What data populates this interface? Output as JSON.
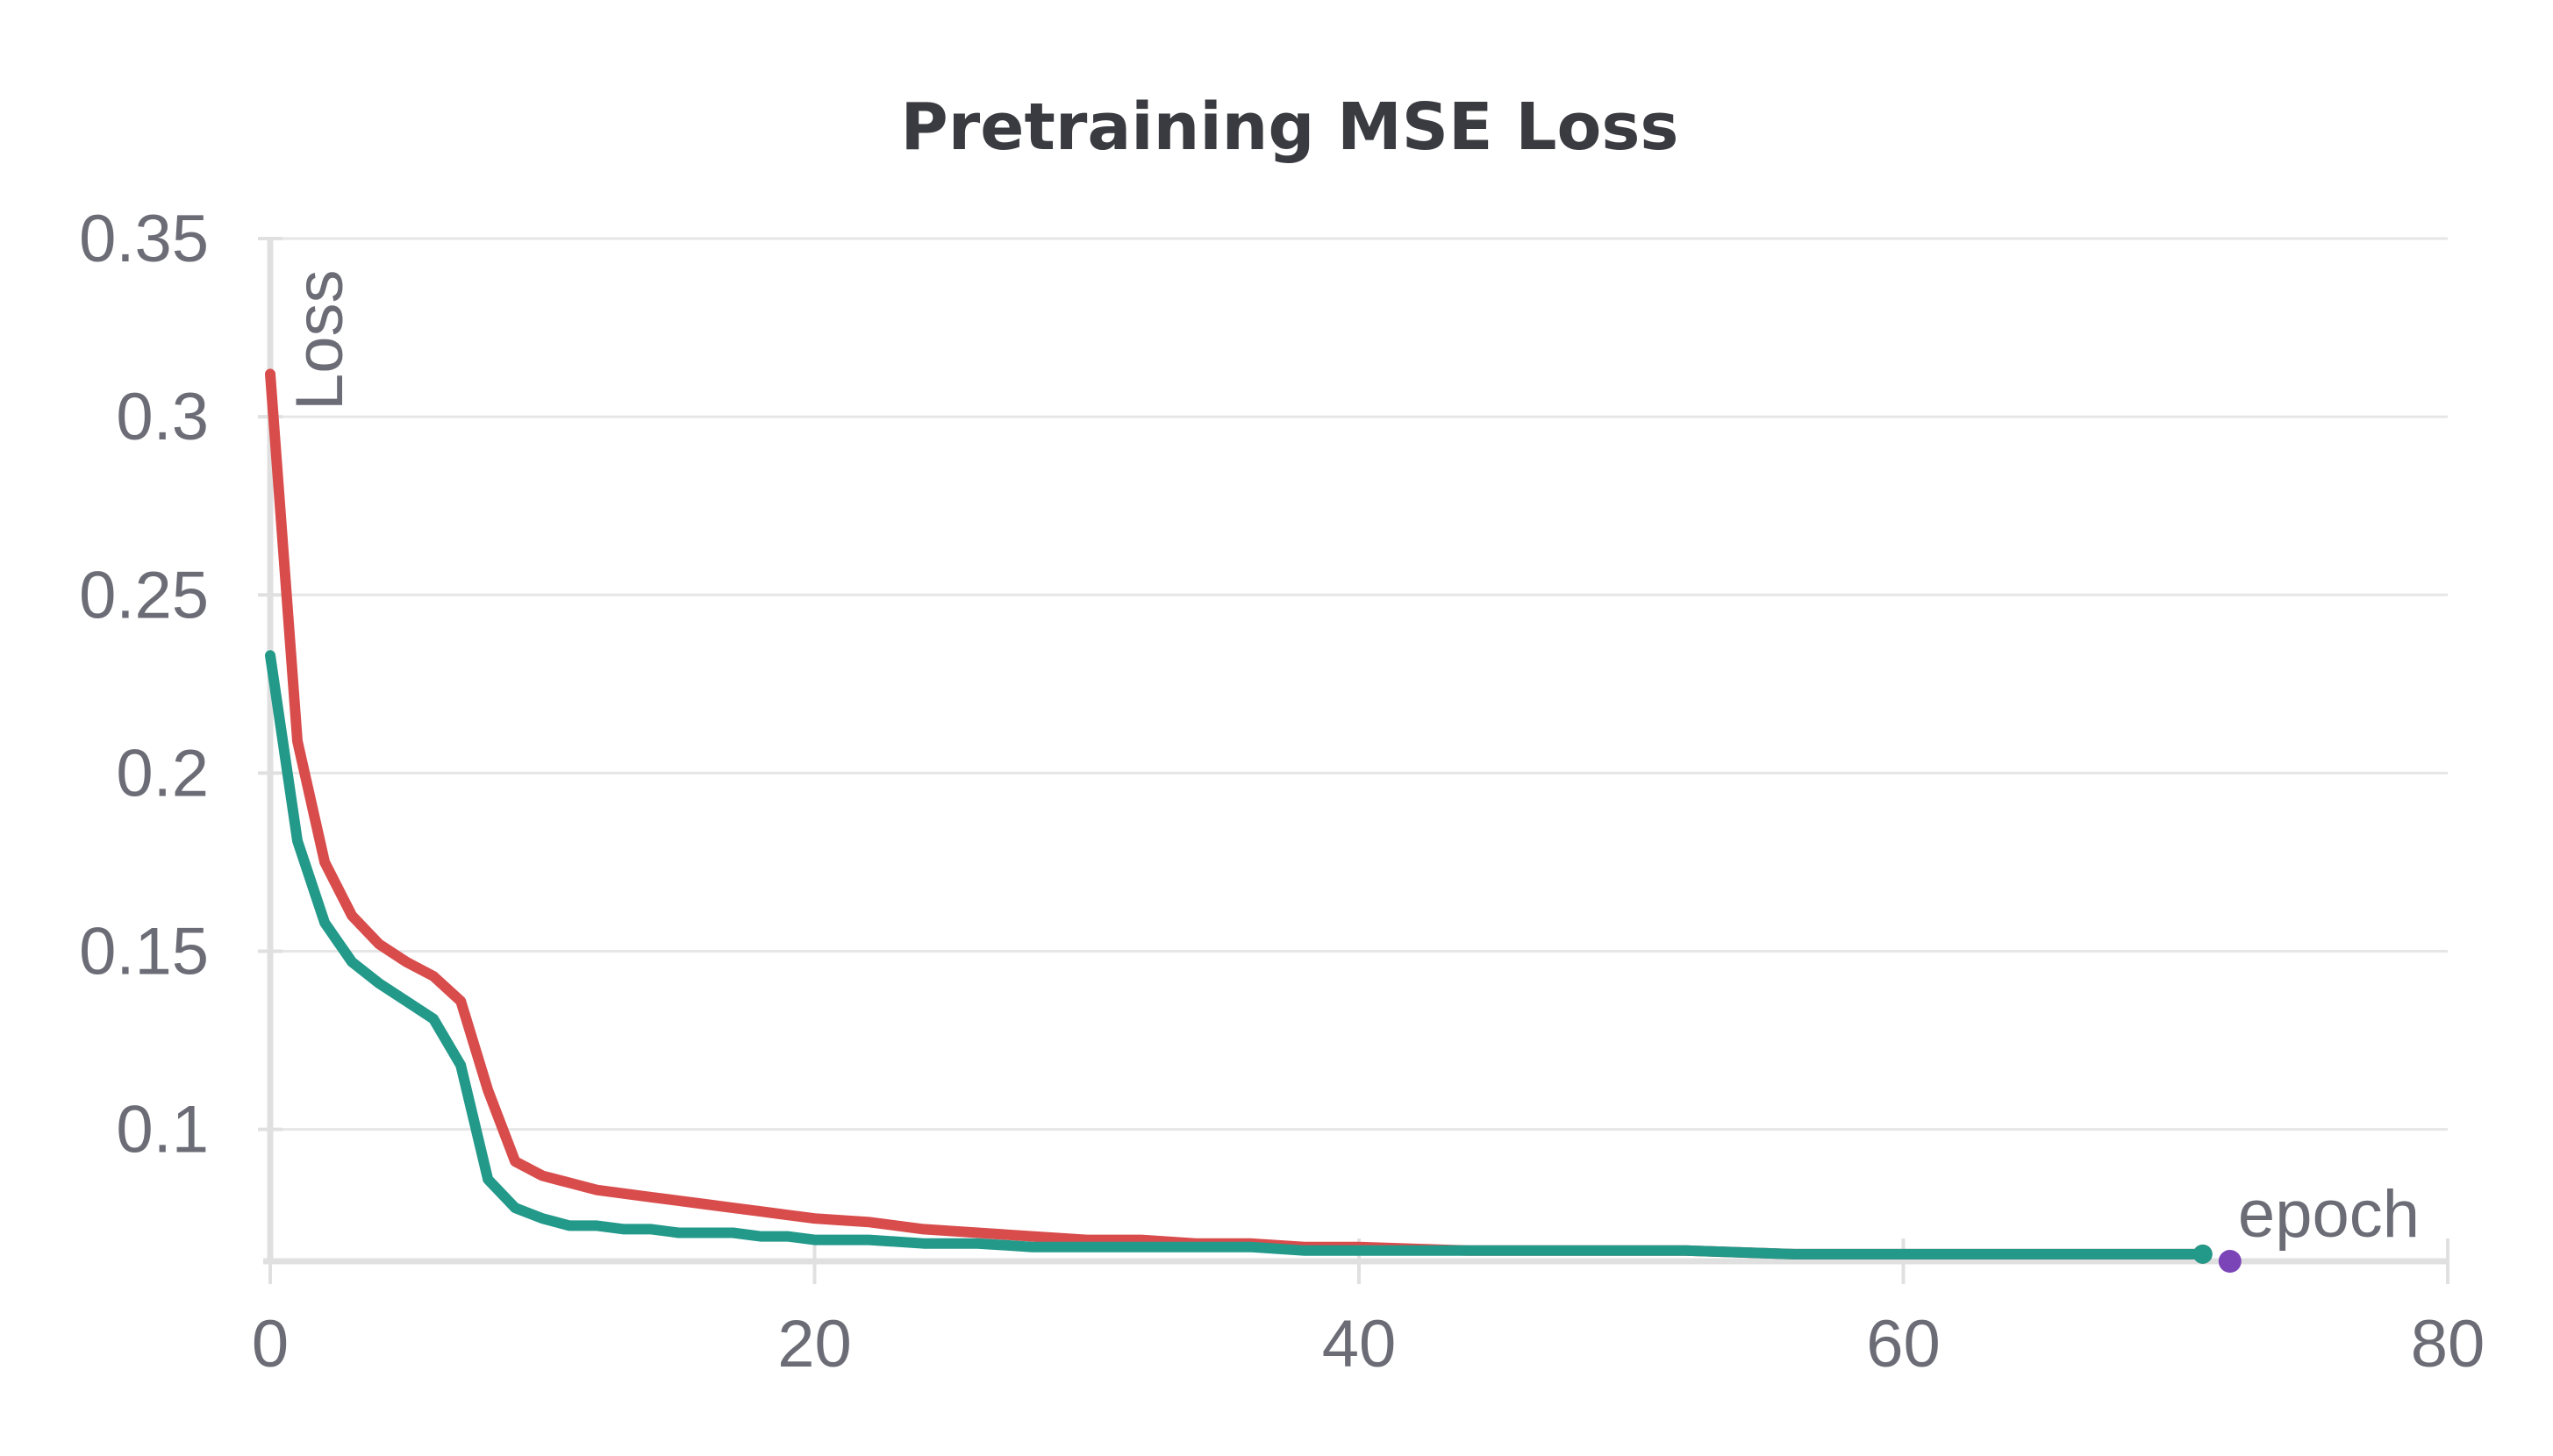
{
  "chart_data": {
    "type": "line",
    "title": "Pretraining MSE Loss",
    "xlabel": "epoch",
    "ylabel": "Loss",
    "xlim": [
      0,
      80
    ],
    "ylim": [
      0.063,
      0.35
    ],
    "xticks": [
      0,
      20,
      40,
      60,
      80
    ],
    "yticks": [
      0.1,
      0.15,
      0.2,
      0.25,
      0.3,
      0.35
    ],
    "ytick_labels": [
      "0.1",
      "0.15",
      "0.2",
      "0.25",
      "0.3",
      "0.35"
    ],
    "xtick_labels": [
      "0",
      "20",
      "40",
      "60",
      "80"
    ],
    "grid": true,
    "series": [
      {
        "color": "#d94c4c",
        "x": [
          0,
          1,
          2,
          3,
          4,
          5,
          6,
          7,
          8,
          9,
          10,
          11,
          12,
          13,
          14,
          15,
          16,
          17,
          18,
          19,
          20,
          22,
          24,
          26,
          28,
          30,
          32,
          34,
          36,
          38,
          40,
          44,
          48,
          52,
          56,
          60,
          64,
          68,
          71
        ],
        "y": [
          0.312,
          0.209,
          0.175,
          0.16,
          0.152,
          0.147,
          0.143,
          0.136,
          0.111,
          0.091,
          0.087,
          0.085,
          0.083,
          0.082,
          0.081,
          0.08,
          0.079,
          0.078,
          0.077,
          0.076,
          0.075,
          0.074,
          0.072,
          0.071,
          0.07,
          0.069,
          0.069,
          0.068,
          0.068,
          0.067,
          0.067,
          0.066,
          0.066,
          0.066,
          0.065,
          0.065,
          0.065,
          0.065,
          0.065
        ]
      },
      {
        "color": "#23998a",
        "x": [
          0,
          1,
          2,
          3,
          4,
          5,
          6,
          7,
          8,
          9,
          10,
          11,
          12,
          13,
          14,
          15,
          16,
          17,
          18,
          19,
          20,
          22,
          24,
          26,
          28,
          30,
          32,
          34,
          36,
          38,
          40,
          44,
          48,
          52,
          56,
          60,
          64,
          68,
          71
        ],
        "y": [
          0.233,
          0.181,
          0.158,
          0.147,
          0.141,
          0.136,
          0.131,
          0.118,
          0.086,
          0.078,
          0.075,
          0.073,
          0.073,
          0.072,
          0.072,
          0.071,
          0.071,
          0.071,
          0.07,
          0.07,
          0.069,
          0.069,
          0.068,
          0.068,
          0.067,
          0.067,
          0.067,
          0.067,
          0.067,
          0.066,
          0.066,
          0.066,
          0.066,
          0.066,
          0.065,
          0.065,
          0.065,
          0.065,
          0.065
        ]
      }
    ],
    "end_marker": {
      "x": 72,
      "y": 0.063,
      "color": "#7b45b8"
    }
  }
}
